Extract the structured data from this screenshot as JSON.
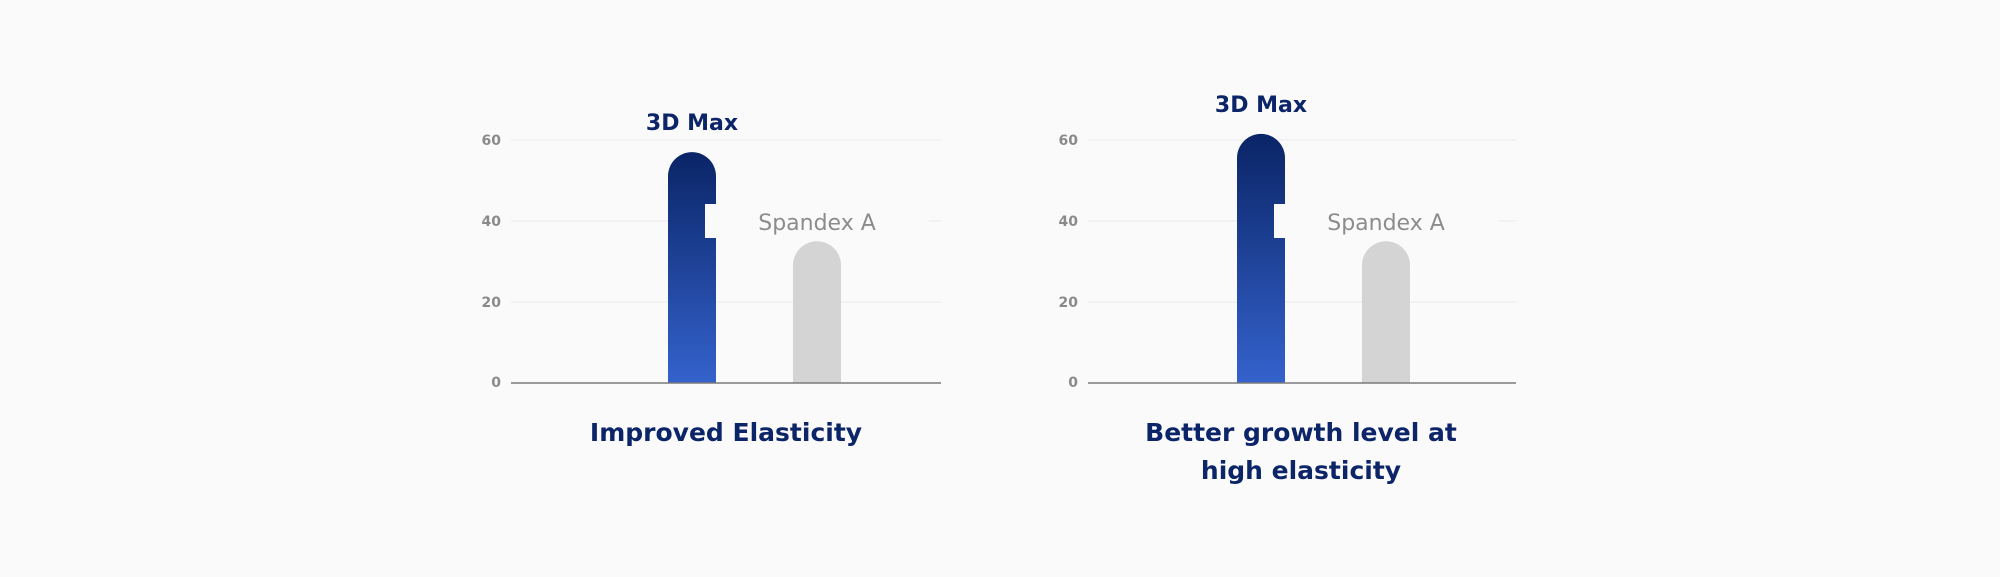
{
  "colors": {
    "background": "#fafafa",
    "primary_top": "#0a2466",
    "primary_bottom": "#3462cc",
    "secondary": "#d4d4d4",
    "primary_text": "#0c2468",
    "secondary_text": "#8c8c8c",
    "grid": "#eaeaea",
    "axis": "#7a7a7a"
  },
  "chart_data": [
    {
      "type": "bar",
      "categories": [
        "3D Max",
        "Spandex A"
      ],
      "values": [
        57,
        35
      ],
      "caption": "Improved Elasticity",
      "yticks": [
        0,
        20,
        40,
        60
      ],
      "ylim": [
        0,
        64
      ],
      "grid": true
    },
    {
      "type": "bar",
      "categories": [
        "3D Max",
        "Spandex A"
      ],
      "values": [
        61.5,
        35
      ],
      "caption": "Better growth level at\nhigh elasticity",
      "yticks": [
        0,
        20,
        40,
        60
      ],
      "ylim": [
        0,
        64
      ],
      "grid": true
    }
  ]
}
